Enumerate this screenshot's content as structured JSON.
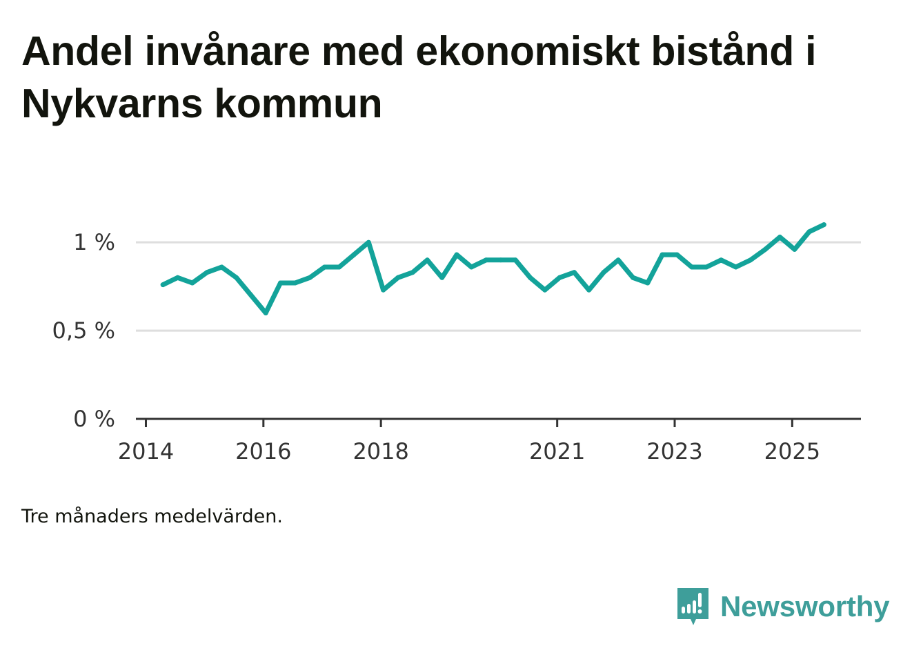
{
  "header": {
    "title": "Andel invånare med ekonomiskt bistånd i Nykvarns kommun"
  },
  "note": "Tre månaders medelvärden.",
  "brand": {
    "name": "Newsworthy",
    "color": "#3e9e9a"
  },
  "chart_data": {
    "type": "line",
    "title": "Andel invånare med ekonomiskt bistånd i Nykvarns kommun",
    "xlabel": "",
    "ylabel": "",
    "ylim": [
      0,
      1.2
    ],
    "xlim": [
      2013.83,
      2026.17
    ],
    "y_ticks": [
      {
        "value": 0,
        "label": "0 %"
      },
      {
        "value": 0.5,
        "label": "0,5 %"
      },
      {
        "value": 1,
        "label": "1 %"
      }
    ],
    "x_ticks": [
      {
        "value": 2014,
        "label": "2014"
      },
      {
        "value": 2016,
        "label": "2016"
      },
      {
        "value": 2018,
        "label": "2018"
      },
      {
        "value": 2021,
        "label": "2021"
      },
      {
        "value": 2023,
        "label": "2023"
      },
      {
        "value": 2025,
        "label": "2025"
      }
    ],
    "grid": true,
    "color": "#13a39a",
    "series": [
      {
        "name": "Andel invånare med ekonomiskt bistånd",
        "x": [
          2014.29,
          2014.54,
          2014.79,
          2015.04,
          2015.29,
          2015.54,
          2015.79,
          2016.04,
          2016.29,
          2016.54,
          2016.79,
          2017.04,
          2017.29,
          2017.54,
          2017.79,
          2018.04,
          2018.29,
          2018.54,
          2018.79,
          2019.04,
          2019.29,
          2019.54,
          2019.79,
          2020.04,
          2020.29,
          2020.54,
          2020.79,
          2021.04,
          2021.29,
          2021.54,
          2021.79,
          2022.04,
          2022.29,
          2022.54,
          2022.79,
          2023.04,
          2023.29,
          2023.54,
          2023.79,
          2024.04,
          2024.29,
          2024.54,
          2024.79,
          2025.04,
          2025.29,
          2025.54
        ],
        "values": [
          0.76,
          0.8,
          0.77,
          0.83,
          0.86,
          0.8,
          0.7,
          0.6,
          0.77,
          0.77,
          0.8,
          0.86,
          0.86,
          0.93,
          1.0,
          0.73,
          0.8,
          0.83,
          0.9,
          0.8,
          0.93,
          0.86,
          0.9,
          0.9,
          0.9,
          0.8,
          0.73,
          0.8,
          0.83,
          0.73,
          0.83,
          0.9,
          0.8,
          0.77,
          0.93,
          0.93,
          0.86,
          0.86,
          0.9,
          0.86,
          0.9,
          0.96,
          1.03,
          0.96,
          1.06,
          1.1
        ]
      }
    ]
  }
}
